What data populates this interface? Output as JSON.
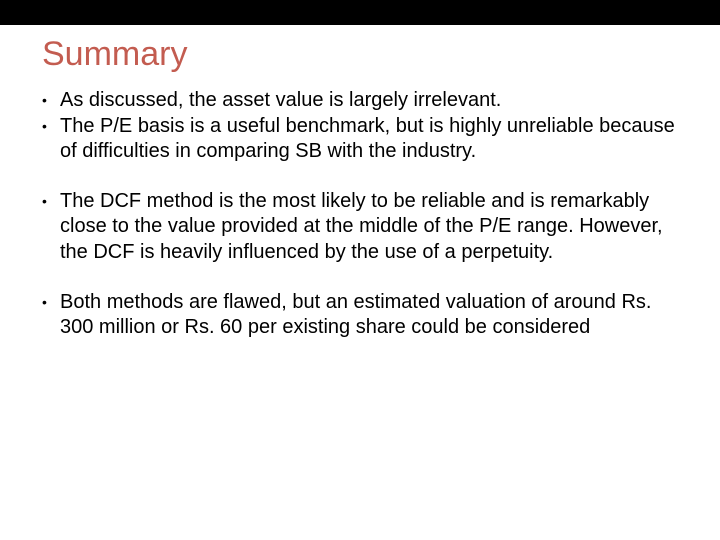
{
  "slide": {
    "title": "Summary",
    "title_color": "#c35c50",
    "title_fontsize": 34,
    "body_fontsize": 20,
    "body_color": "#000000",
    "topbar_color": "#000000",
    "background_color": "#ffffff",
    "bullets": [
      "As discussed, the asset value is largely irrelevant.",
      "The P/E basis is a useful benchmark, but is highly unreliable because of difficulties in comparing SB with the industry.",
      "The DCF method is the most likely to be reliable and is remarkably close to the value provided at the middle of the P/E range. However, the DCF is heavily influenced by the use of a perpetuity.",
      " Both methods are flawed, but an estimated valuation of around Rs. 300 million or Rs. 60 per existing share could be considered"
    ],
    "gaps_after": [
      false,
      true,
      true,
      false
    ]
  }
}
